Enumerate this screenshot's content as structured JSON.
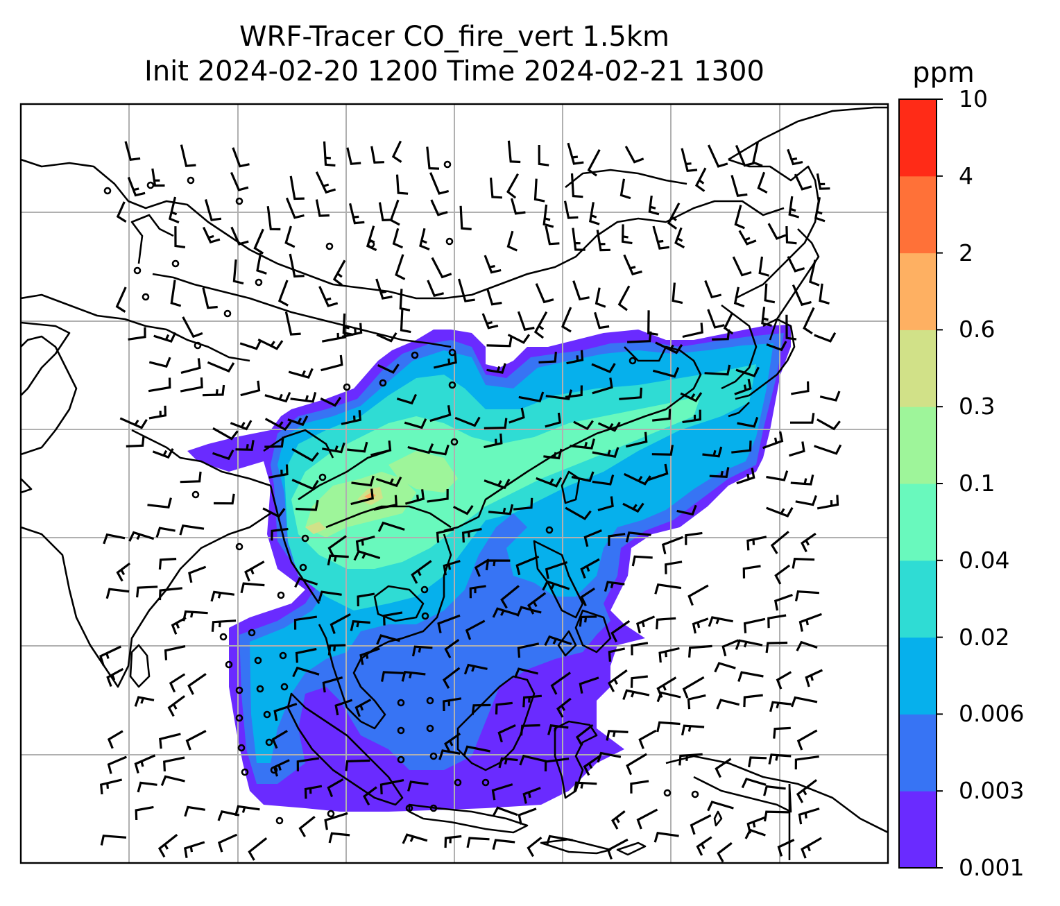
{
  "title": {
    "line1": "WRF-Tracer CO_fire_vert 1.5km",
    "line2": "Init 2024-02-20 1200 Time 2024-02-21 1300"
  },
  "colorbar": {
    "unit": "ppm",
    "levels": [
      "0.001",
      "0.003",
      "0.006",
      "0.02",
      "0.04",
      "0.1",
      "0.3",
      "0.6",
      "2",
      "4",
      "10"
    ],
    "colors": [
      "#6a2bff",
      "#3774f4",
      "#06b0ec",
      "#2fdcd4",
      "#69f9bd",
      "#9ef59a",
      "#d1e188",
      "#feb062",
      "#ff7138",
      "#ff2b17"
    ]
  },
  "map": {
    "grid": "on",
    "features": [
      "coastlines",
      "country-borders",
      "wind-barbs",
      "CO-tracer-fill"
    ]
  }
}
